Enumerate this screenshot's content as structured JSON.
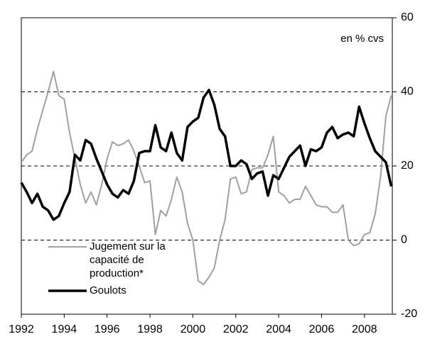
{
  "chart_data": {
    "type": "line",
    "annotation": "en % cvs",
    "xlim": [
      1992,
      2009.3
    ],
    "xticks": [
      1992,
      1994,
      1996,
      1998,
      2000,
      2002,
      2004,
      2006,
      2008
    ],
    "ylim": [
      -20,
      60
    ],
    "yticks": [
      -20,
      0,
      20,
      40,
      60
    ],
    "grid": true,
    "legend": "lower left",
    "x": [
      1992,
      1992.25,
      1992.5,
      1992.75,
      1993,
      1993.25,
      1993.5,
      1993.75,
      1994,
      1994.25,
      1994.5,
      1994.75,
      1995,
      1995.25,
      1995.5,
      1995.75,
      1996,
      1996.25,
      1996.5,
      1996.75,
      1997,
      1997.25,
      1997.5,
      1997.75,
      1998,
      1998.25,
      1998.5,
      1998.75,
      1999,
      1999.25,
      1999.5,
      1999.75,
      2000,
      2000.25,
      2000.5,
      2000.75,
      2001,
      2001.25,
      2001.5,
      2001.75,
      2002,
      2002.25,
      2002.5,
      2002.75,
      2003,
      2003.25,
      2003.5,
      2003.75,
      2004,
      2004.25,
      2004.5,
      2004.75,
      2005,
      2005.25,
      2005.5,
      2005.75,
      2006,
      2006.25,
      2006.5,
      2006.75,
      2007,
      2007.25,
      2007.5,
      2007.75,
      2008,
      2008.25,
      2008.5,
      2008.75,
      2009,
      2009.25
    ],
    "series": [
      {
        "name": "Jugement sur la capacité de production*",
        "color": "#a0a0a0",
        "width": 2,
        "values": [
          21,
          23,
          24,
          30,
          35,
          40,
          45.5,
          39,
          38,
          29,
          22,
          15,
          10,
          13,
          9.5,
          15,
          22,
          26.5,
          25.5,
          26,
          27,
          24,
          20,
          15.5,
          16,
          1.5,
          8,
          6.5,
          11,
          17,
          13,
          4.5,
          0,
          -11,
          -12,
          -10,
          -7.5,
          0,
          5.5,
          16.5,
          17,
          12.5,
          13,
          19,
          19.5,
          19.5,
          23,
          28,
          13,
          12,
          10,
          11,
          11,
          14.5,
          12,
          9.5,
          9,
          9,
          7.5,
          7.5,
          9.5,
          0,
          -1.5,
          -1,
          1.5,
          2,
          7,
          17,
          33.5,
          39
        ]
      },
      {
        "name": "Goulots",
        "color": "#000000",
        "width": 3.5,
        "values": [
          15.5,
          13,
          10,
          12.5,
          9,
          8,
          5.5,
          6.5,
          10,
          13,
          23,
          21.5,
          27,
          26,
          22,
          18.5,
          15,
          12.5,
          11.5,
          13.5,
          12.5,
          16,
          23.5,
          24,
          24,
          31,
          25,
          24,
          29,
          23.5,
          21.5,
          30.5,
          32,
          33,
          38.5,
          40.5,
          36.5,
          30,
          28,
          20,
          20,
          21.5,
          20.5,
          16.5,
          18,
          18.5,
          12,
          17.5,
          16.5,
          19.5,
          22.5,
          24,
          25.5,
          20,
          24.5,
          24,
          25,
          29,
          30.5,
          27.5,
          28.5,
          29,
          28,
          36,
          31.5,
          27.5,
          24,
          22.5,
          21,
          14.5
        ]
      }
    ]
  }
}
